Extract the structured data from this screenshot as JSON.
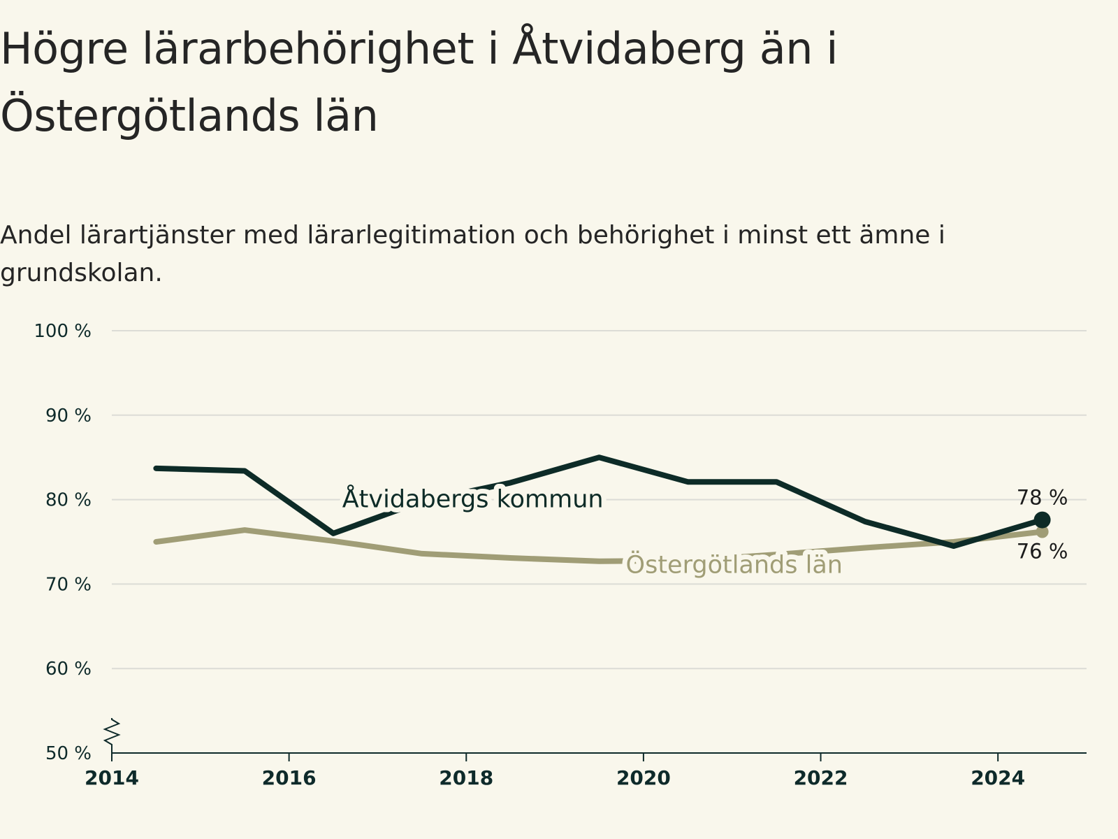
{
  "title": "Högre lärarbehörighet i Åtvidaberg än i Östergötlands län",
  "subtitle": "Andel lärartjänster med lärarlegitimation och behörighet i minst ett ämne i grundskolan.",
  "chart_data": {
    "type": "line",
    "x": [
      2014.5,
      2015.5,
      2016.5,
      2017.5,
      2018.5,
      2019.5,
      2020.5,
      2021.5,
      2022.5,
      2023.5,
      2024.5
    ],
    "xlim": [
      2014,
      2025
    ],
    "x_ticks": [
      2014,
      2016,
      2018,
      2020,
      2022,
      2024
    ],
    "x_tick_labels": [
      "2014",
      "2016",
      "2018",
      "2020",
      "2022",
      "2024"
    ],
    "ylim": [
      50,
      100
    ],
    "y_ticks": [
      50,
      60,
      70,
      80,
      90,
      100
    ],
    "y_tick_labels": [
      "50 %",
      "60 %",
      "70 %",
      "80 %",
      "90 %",
      "100 %"
    ],
    "y_axis_break": true,
    "grid": true,
    "series": [
      {
        "name": "Åtvidabergs kommun",
        "color": "#0d2b27",
        "values": [
          83.7,
          83.4,
          76.0,
          79.8,
          82.0,
          85.0,
          82.1,
          82.1,
          77.4,
          74.5,
          77.6
        ],
        "end_label": "78 %",
        "end_marker": true
      },
      {
        "name": "Östergötlands län",
        "color": "#a09d76",
        "values": [
          75.0,
          76.4,
          75.1,
          73.6,
          73.1,
          72.7,
          72.8,
          73.5,
          74.3,
          75.0,
          76.2
        ],
        "end_label": "76 %",
        "end_marker": true
      }
    ]
  }
}
